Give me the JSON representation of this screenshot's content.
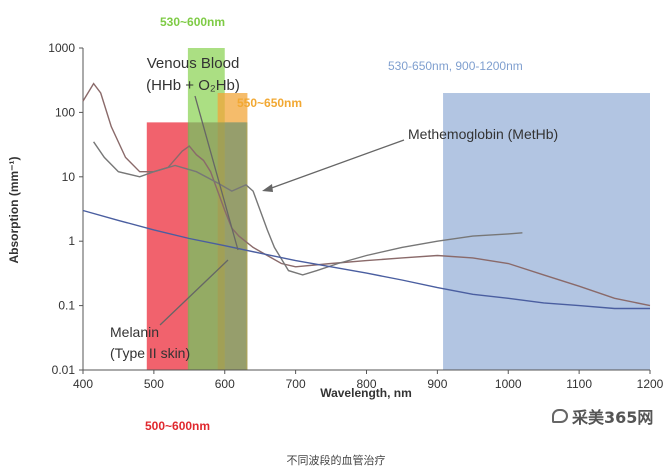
{
  "chart_data": {
    "type": "line",
    "title": "",
    "xlabel": "Wavelength, nm",
    "ylabel": "Absorption (mm⁻¹)",
    "xlim": [
      400,
      1200
    ],
    "ylim_log10": [
      -2,
      3
    ],
    "y_scale": "log",
    "x_ticks": [
      400,
      500,
      600,
      700,
      800,
      900,
      1000,
      1100,
      1200
    ],
    "y_ticks": [
      {
        "value": 0.01,
        "label": "0.01"
      },
      {
        "value": 0.1,
        "label": "0.1"
      },
      {
        "value": 1,
        "label": "1"
      },
      {
        "value": 10,
        "label": "10"
      },
      {
        "value": 100,
        "label": "100"
      },
      {
        "value": 1000,
        "label": "1000"
      }
    ],
    "grid": false,
    "bands": [
      {
        "label": "500~600nm",
        "x0": 490,
        "x1": 550,
        "y_top": 70,
        "color": "#ee3b48",
        "opacity": 0.8
      },
      {
        "label": "530~600nm",
        "x0": 548,
        "x1": 600,
        "y_top": 1000,
        "color": "#8fd45a",
        "opacity": 0.75
      },
      {
        "label": "550~650nm",
        "x0": 590,
        "x1": 632,
        "y_top": 200,
        "color": "#f2a53a",
        "opacity": 0.75
      },
      {
        "label": "530-650nm, 900-1200nm",
        "x0": 600,
        "x1": 630,
        "y_top": 70,
        "color": "#7f9fcf",
        "opacity": 0.55
      },
      {
        "label": "530-650nm, 900-1200nm",
        "x0": 908,
        "x1": 1200,
        "y_top": 200,
        "color": "#7f9fcf",
        "opacity": 0.6
      },
      {
        "label": "",
        "x0": 548,
        "x1": 632,
        "y_top": 70,
        "color": "#8c9a5a",
        "opacity": 0.75
      }
    ],
    "series": [
      {
        "name": "Venous Blood (HHb + O₂Hb)",
        "color": "#8a6a6a",
        "x": [
          400,
          415,
          425,
          440,
          460,
          480,
          500,
          520,
          540,
          550,
          560,
          570,
          580,
          590,
          600,
          610,
          620,
          640,
          660,
          680,
          700,
          750,
          800,
          850,
          900,
          950,
          1000,
          1050,
          1100,
          1150,
          1200
        ],
        "y": [
          150,
          280,
          200,
          60,
          20,
          12,
          12,
          14,
          25,
          30,
          22,
          18,
          12,
          6,
          3,
          1.6,
          1.2,
          0.8,
          0.6,
          0.45,
          0.4,
          0.45,
          0.5,
          0.55,
          0.6,
          0.55,
          0.45,
          0.3,
          0.2,
          0.13,
          0.1
        ]
      },
      {
        "name": "Methemoglobin (MetHb)",
        "color": "#777777",
        "x": [
          415,
          430,
          450,
          480,
          500,
          530,
          560,
          590,
          610,
          630,
          640,
          650,
          660,
          670,
          690,
          710,
          730,
          760,
          800,
          850,
          900,
          950,
          1000,
          1020
        ],
        "y": [
          35,
          20,
          12,
          10,
          12,
          15,
          12,
          8,
          6,
          7.5,
          6,
          3,
          1.5,
          0.8,
          0.35,
          0.3,
          0.35,
          0.45,
          0.6,
          0.8,
          1.0,
          1.2,
          1.3,
          1.35
        ]
      },
      {
        "name": "Melanin (Type II skin)",
        "color": "#4a5ea0",
        "x": [
          400,
          450,
          500,
          550,
          600,
          650,
          700,
          750,
          800,
          850,
          900,
          950,
          1000,
          1050,
          1100,
          1150,
          1200
        ],
        "y": [
          3,
          2.1,
          1.5,
          1.1,
          0.85,
          0.65,
          0.5,
          0.4,
          0.32,
          0.25,
          0.19,
          0.15,
          0.13,
          0.11,
          0.1,
          0.09,
          0.09
        ]
      }
    ],
    "annotations": [
      {
        "text": "Venous Blood",
        "text2": "(HHb + O₂Hb)",
        "color": "#333333"
      },
      {
        "text": "Methemoglobin (MetHb)",
        "color": "#333333"
      },
      {
        "text": "Melanin",
        "text2": "(Type II skin)",
        "color": "#333333"
      },
      {
        "text": "530~600nm",
        "color": "#7ecb45"
      },
      {
        "text": "550~650nm",
        "color": "#f2a832"
      },
      {
        "text": "530-650nm, 900-1200nm",
        "color": "#7f9fcf"
      },
      {
        "text": "500~600nm",
        "color": "#e0282e"
      }
    ]
  },
  "caption": "不同波段的血管治疗",
  "watermark": "采美365网"
}
